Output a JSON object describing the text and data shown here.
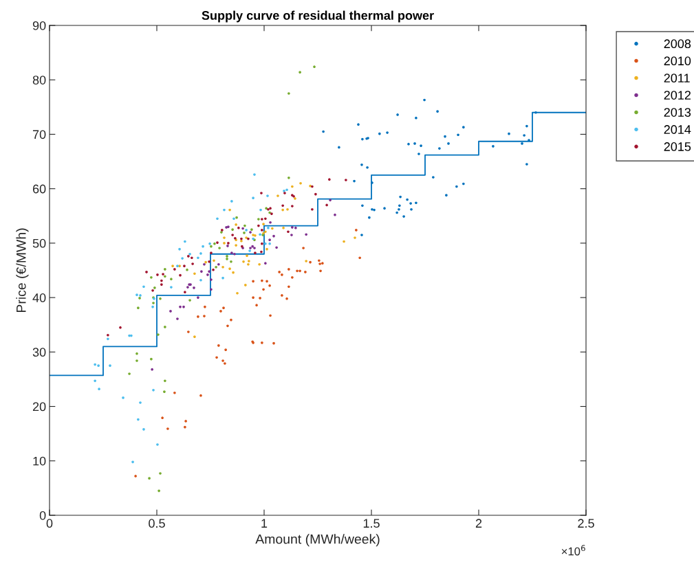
{
  "chart_data": {
    "type": "scatter",
    "title": "Supply curve of residual thermal power",
    "xlabel": "Amount (MWh/week)",
    "ylabel": "Price (€/MWh)",
    "annotations": [
      "×10$^{6}$"
    ],
    "xlim": [
      0,
      2.5
    ],
    "ylim": [
      0,
      90
    ],
    "xticks": [
      0,
      0.5,
      1,
      1.5,
      2,
      2.5
    ],
    "yticks": [
      0,
      10,
      20,
      30,
      40,
      50,
      60,
      70,
      80,
      90
    ],
    "grid": false,
    "legend": "top right",
    "marker": "circle",
    "series": [
      {
        "name": "2008",
        "color": "#0072bd",
        "x": [
          1.276,
          1.349,
          1.439,
          1.458,
          1.478,
          1.484,
          1.538,
          1.574,
          1.622,
          1.708,
          1.747,
          1.808,
          1.673,
          1.702,
          1.731,
          1.721,
          1.817,
          1.843,
          1.859,
          1.904,
          1.929,
          2.067,
          2.141,
          2.202,
          2.212,
          2.224,
          2.234,
          2.224,
          2.266,
          1.455,
          1.481,
          1.42,
          1.503,
          1.788,
          1.897,
          1.929,
          1.849,
          1.635,
          1.667,
          1.683,
          1.708,
          1.631,
          1.628,
          1.686,
          1.619,
          1.651,
          1.561,
          1.503,
          1.513,
          1.458,
          1.49,
          1.455
        ],
        "values": [
          70.5,
          67.6,
          71.8,
          69.1,
          69.2,
          69.3,
          70.1,
          70.3,
          73.6,
          73.0,
          76.3,
          74.2,
          68.2,
          68.3,
          67.9,
          66.4,
          67.4,
          69.6,
          68.3,
          69.9,
          71.3,
          67.8,
          70.1,
          68.3,
          69.8,
          71.5,
          68.9,
          64.5,
          74.0,
          64.4,
          63.9,
          61.4,
          61.1,
          62.1,
          60.4,
          60.9,
          58.8,
          58.5,
          58.0,
          57.3,
          57.4,
          56.9,
          56.2,
          56.2,
          55.6,
          54.9,
          56.4,
          56.2,
          56.1,
          56.9,
          54.7,
          51.5
        ]
      },
      {
        "name": "2010",
        "color": "#d95319",
        "x": [
          1.183,
          1.429,
          1.446,
          1.215,
          1.256,
          1.26,
          1.272,
          1.263,
          1.192,
          1.154,
          1.167,
          1.131,
          1.115,
          1.115,
          1.071,
          1.083,
          0.949,
          0.99,
          1.013,
          1.026,
          0.997,
          0.949,
          0.981,
          0.965,
          1.083,
          1.106,
          1.029,
          0.811,
          0.798,
          0.846,
          0.83,
          0.946,
          0.949,
          0.99,
          1.045,
          0.788,
          0.821,
          0.724,
          0.721,
          0.692,
          0.647,
          0.779,
          0.808,
          0.817,
          0.583,
          0.705,
          0.526,
          0.635,
          0.551,
          0.631,
          0.401
        ],
        "values": [
          49.1,
          52.4,
          47.3,
          46.5,
          46.8,
          46.2,
          46.3,
          44.9,
          44.7,
          44.9,
          44.9,
          43.7,
          42.0,
          45.2,
          44.7,
          44.2,
          43.0,
          43.1,
          43.0,
          42.2,
          41.5,
          40.0,
          39.9,
          38.6,
          40.4,
          39.8,
          36.7,
          38.1,
          37.5,
          35.9,
          34.8,
          31.9,
          31.7,
          31.7,
          31.6,
          31.2,
          30.4,
          38.3,
          36.6,
          36.5,
          33.7,
          29.0,
          28.4,
          27.9,
          22.5,
          22.0,
          17.9,
          17.3,
          15.9,
          16.2,
          7.2
        ]
      },
      {
        "name": "2011",
        "color": "#edb120",
        "x": [
          1.17,
          1.131,
          1.215,
          1.064,
          1.144,
          1.087,
          1.109,
          0.84,
          0.869,
          0.814,
          0.869,
          0.814,
          0.869,
          0.894,
          0.917,
          0.949,
          0.958,
          0.997,
          1.006,
          1.038,
          1.09,
          0.997,
          0.766,
          0.808,
          0.84,
          0.856,
          0.904,
          0.929,
          0.926,
          0.978,
          0.92,
          1.013,
          0.913,
          0.875,
          1.196,
          0.676,
          1.372,
          1.423,
          0.574,
          0.606,
          0.676,
          0.728
        ],
        "values": [
          61.0,
          60.4,
          60.5,
          58.7,
          58.2,
          56.1,
          56.2,
          56.1,
          53.4,
          51.0,
          50.6,
          50.0,
          49.6,
          50.4,
          51.0,
          51.5,
          51.4,
          51.8,
          52.1,
          52.7,
          52.8,
          53.5,
          46.8,
          45.6,
          45.3,
          44.6,
          46.6,
          46.7,
          46.1,
          46.1,
          47.7,
          48.9,
          42.3,
          40.8,
          46.7,
          32.8,
          50.3,
          51.0,
          45.8,
          45.8,
          44.4,
          46.5
        ]
      },
      {
        "name": "2012",
        "color": "#7e2f8e",
        "x": [
          0.824,
          0.833,
          0.901,
          0.936,
          1.029,
          1.045,
          1.026,
          0.83,
          0.901,
          0.936,
          0.946,
          0.955,
          1.058,
          0.849,
          0.862,
          0.788,
          0.744,
          0.753,
          0.753,
          1.006,
          1.131,
          1.147,
          1.128,
          1.196,
          0.564,
          0.596,
          0.609,
          0.625,
          0.478,
          0.644,
          0.651,
          0.657,
          0.673,
          0.692,
          0.721,
          0.708,
          0.737,
          1.308,
          1.33
        ],
        "values": [
          52.9,
          53.0,
          52.7,
          52.0,
          53.8,
          51.3,
          50.6,
          49.5,
          49.1,
          49.1,
          49.4,
          49.1,
          49.2,
          48.2,
          48.0,
          46.1,
          44.8,
          43.3,
          41.5,
          46.3,
          52.9,
          52.8,
          51.5,
          51.6,
          37.5,
          36.1,
          38.3,
          38.3,
          26.8,
          41.9,
          42.4,
          42.4,
          41.8,
          40.0,
          46.1,
          44.8,
          44.2,
          57.9,
          55.2
        ]
      },
      {
        "name": "2013",
        "color": "#77ac30",
        "x": [
          1.167,
          1.234,
          1.115,
          1.115,
          0.91,
          0.872,
          0.853,
          0.801,
          0.907,
          0.942,
          0.974,
          1.01,
          1.026,
          0.994,
          0.769,
          0.792,
          0.827,
          0.827,
          0.846,
          0.776,
          0.955,
          0.753,
          0.474,
          0.49,
          0.42,
          0.484,
          0.413,
          0.484,
          0.538,
          0.506,
          0.407,
          0.407,
          0.474,
          0.372,
          0.538,
          0.535,
          0.516,
          0.465,
          0.51,
          0.654,
          0.516,
          0.538,
          0.538,
          0.567,
          0.641
        ],
        "values": [
          81.4,
          82.4,
          77.5,
          62.0,
          53.2,
          54.7,
          52.5,
          52.0,
          51.9,
          52.5,
          54.4,
          56.4,
          55.6,
          51.5,
          49.9,
          49.1,
          47.6,
          47.1,
          46.6,
          45.6,
          50.6,
          49.4,
          43.7,
          41.8,
          39.9,
          39.0,
          38.1,
          40.0,
          34.6,
          33.2,
          29.7,
          28.4,
          28.7,
          26.0,
          24.7,
          22.7,
          7.7,
          6.8,
          4.5,
          39.5,
          39.8,
          45.2,
          43.9,
          43.4,
          45.1
        ]
      },
      {
        "name": "2014",
        "color": "#4dbeee",
        "x": [
          0.212,
          0.228,
          0.282,
          0.212,
          0.231,
          0.343,
          0.423,
          0.413,
          0.439,
          0.503,
          0.388,
          0.484,
          0.272,
          0.372,
          0.381,
          0.407,
          0.423,
          0.481,
          0.487,
          0.439,
          0.567,
          0.606,
          0.631,
          0.654,
          0.619,
          0.596,
          0.715,
          0.705,
          0.692,
          0.705,
          0.782,
          0.747,
          0.955,
          0.849,
          0.949,
          1.016,
          0.814,
          0.859,
          0.984,
          1.093,
          1.106,
          0.933,
          0.949,
          0.981,
          1.026,
          1.006,
          1.019,
          0.808,
          0.917
        ],
        "values": [
          27.7,
          27.5,
          27.5,
          24.7,
          23.2,
          21.6,
          20.7,
          17.6,
          15.8,
          13.0,
          9.8,
          23.0,
          32.4,
          33.0,
          33.0,
          40.5,
          40.4,
          38.3,
          39.8,
          42.0,
          41.9,
          48.9,
          50.3,
          48.0,
          47.2,
          45.8,
          49.4,
          48.1,
          47.3,
          43.2,
          54.5,
          49.9,
          62.6,
          57.7,
          58.3,
          58.7,
          56.1,
          54.5,
          56.1,
          59.6,
          59.8,
          48.6,
          50.8,
          51.6,
          49.9,
          49.9,
          52.8,
          43.6,
          52.4
        ]
      },
      {
        "name": "2015",
        "color": "#a2142f",
        "x": [
          0.272,
          0.33,
          0.452,
          0.481,
          0.503,
          0.529,
          0.522,
          0.522,
          0.583,
          0.609,
          0.628,
          0.631,
          0.647,
          0.663,
          0.667,
          0.763,
          0.782,
          0.744,
          0.987,
          1.096,
          1.131,
          1.138,
          1.224,
          1.24,
          1.087,
          1.131,
          1.224,
          1.292,
          1.019,
          1.035,
          1.029,
          0.99,
          1.006,
          0.974,
          0.99,
          1.112,
          0.881,
          0.804,
          0.853,
          0.894,
          0.865,
          0.833,
          0.897,
          0.926,
          0.99,
          0.958,
          0.987,
          0.753,
          1.304,
          1.381
        ],
        "values": [
          33.1,
          34.5,
          44.7,
          41.3,
          44.2,
          44.3,
          43.1,
          42.4,
          45.2,
          44.1,
          45.8,
          41.0,
          47.6,
          47.3,
          46.2,
          45.1,
          50.1,
          46.6,
          59.2,
          59.2,
          58.8,
          58.6,
          60.4,
          59.0,
          56.9,
          56.8,
          56.2,
          57.0,
          56.2,
          55.4,
          56.4,
          54.4,
          54.5,
          53.2,
          52.4,
          52.1,
          52.8,
          52.4,
          51.5,
          50.8,
          50.9,
          50.0,
          49.4,
          50.8,
          49.9,
          48.2,
          48.4,
          48.2,
          61.7,
          61.6
        ]
      },
      {
        "type": "step",
        "color": "#0072bd",
        "marker": "none",
        "x": [
          0,
          0.25,
          0.5,
          0.75,
          1,
          1.25,
          1.5,
          1.75,
          2,
          2.25,
          2.5
        ],
        "values": [
          25.7,
          31,
          40.4,
          48,
          53.2,
          58.1,
          62.5,
          66.2,
          68.7,
          74,
          74
        ]
      }
    ]
  }
}
